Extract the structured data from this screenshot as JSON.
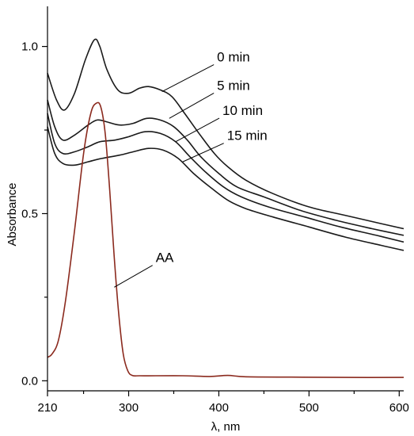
{
  "chart_data": {
    "type": "line",
    "title": "",
    "xlabel": "λ, nm",
    "ylabel": "Absorbance",
    "xlim": [
      210,
      605
    ],
    "ylim": [
      -0.03,
      1.12
    ],
    "x_ticks": [
      {
        "value": 210,
        "label": "210"
      },
      {
        "value": 300,
        "label": "300"
      },
      {
        "value": 400,
        "label": "400"
      },
      {
        "value": 500,
        "label": "500"
      },
      {
        "value": 600,
        "label": "600"
      }
    ],
    "x_minor_ticks": [
      250,
      350,
      450,
      550
    ],
    "y_ticks": [
      {
        "value": 0.0,
        "label": "0.0"
      },
      {
        "value": 0.5,
        "label": "0.5"
      },
      {
        "value": 1.0,
        "label": "1.0"
      }
    ],
    "y_minor_ticks": [
      0.25,
      0.75
    ],
    "grid": false,
    "series": [
      {
        "name": "0 min",
        "color": "#1a1a1a",
        "label_anchor": [
          337,
          0.865
        ],
        "points": [
          [
            210,
            0.92
          ],
          [
            220,
            0.84
          ],
          [
            229,
            0.81
          ],
          [
            240,
            0.86
          ],
          [
            252,
            0.96
          ],
          [
            262,
            1.02
          ],
          [
            268,
            1.0
          ],
          [
            276,
            0.93
          ],
          [
            288,
            0.87
          ],
          [
            300,
            0.86
          ],
          [
            312,
            0.875
          ],
          [
            322,
            0.88
          ],
          [
            335,
            0.87
          ],
          [
            348,
            0.85
          ],
          [
            362,
            0.8
          ],
          [
            378,
            0.74
          ],
          [
            395,
            0.68
          ],
          [
            410,
            0.64
          ],
          [
            430,
            0.6
          ],
          [
            460,
            0.56
          ],
          [
            500,
            0.52
          ],
          [
            540,
            0.495
          ],
          [
            580,
            0.47
          ],
          [
            605,
            0.455
          ]
        ]
      },
      {
        "name": "5 min",
        "color": "#1a1a1a",
        "label_anchor": [
          345,
          0.785
        ],
        "points": [
          [
            210,
            0.84
          ],
          [
            218,
            0.76
          ],
          [
            227,
            0.72
          ],
          [
            240,
            0.735
          ],
          [
            255,
            0.765
          ],
          [
            265,
            0.78
          ],
          [
            275,
            0.775
          ],
          [
            290,
            0.765
          ],
          [
            305,
            0.77
          ],
          [
            320,
            0.785
          ],
          [
            335,
            0.78
          ],
          [
            350,
            0.76
          ],
          [
            365,
            0.72
          ],
          [
            380,
            0.67
          ],
          [
            400,
            0.62
          ],
          [
            420,
            0.58
          ],
          [
            450,
            0.55
          ],
          [
            490,
            0.51
          ],
          [
            530,
            0.48
          ],
          [
            570,
            0.455
          ],
          [
            605,
            0.435
          ]
        ]
      },
      {
        "name": "10 min",
        "color": "#1a1a1a",
        "label_anchor": [
          352,
          0.715
        ],
        "points": [
          [
            210,
            0.8
          ],
          [
            218,
            0.71
          ],
          [
            227,
            0.68
          ],
          [
            240,
            0.685
          ],
          [
            255,
            0.7
          ],
          [
            268,
            0.715
          ],
          [
            285,
            0.72
          ],
          [
            300,
            0.73
          ],
          [
            318,
            0.745
          ],
          [
            335,
            0.74
          ],
          [
            352,
            0.715
          ],
          [
            368,
            0.67
          ],
          [
            385,
            0.625
          ],
          [
            405,
            0.58
          ],
          [
            425,
            0.55
          ],
          [
            455,
            0.52
          ],
          [
            495,
            0.49
          ],
          [
            535,
            0.46
          ],
          [
            575,
            0.435
          ],
          [
            605,
            0.415
          ]
        ]
      },
      {
        "name": "15 min",
        "color": "#1a1a1a",
        "label_anchor": [
          360,
          0.655
        ],
        "points": [
          [
            210,
            0.76
          ],
          [
            218,
            0.68
          ],
          [
            227,
            0.65
          ],
          [
            240,
            0.645
          ],
          [
            255,
            0.655
          ],
          [
            270,
            0.665
          ],
          [
            290,
            0.675
          ],
          [
            305,
            0.685
          ],
          [
            322,
            0.695
          ],
          [
            338,
            0.69
          ],
          [
            355,
            0.665
          ],
          [
            372,
            0.62
          ],
          [
            390,
            0.58
          ],
          [
            410,
            0.54
          ],
          [
            430,
            0.515
          ],
          [
            460,
            0.49
          ],
          [
            500,
            0.46
          ],
          [
            540,
            0.43
          ],
          [
            580,
            0.405
          ],
          [
            605,
            0.39
          ]
        ]
      },
      {
        "name": "AA",
        "color": "#8b2a1e",
        "label_anchor": [
          284,
          0.28
        ],
        "points": [
          [
            210,
            0.07
          ],
          [
            215,
            0.08
          ],
          [
            222,
            0.12
          ],
          [
            230,
            0.24
          ],
          [
            240,
            0.45
          ],
          [
            250,
            0.68
          ],
          [
            258,
            0.8
          ],
          [
            264,
            0.83
          ],
          [
            269,
            0.82
          ],
          [
            274,
            0.74
          ],
          [
            279,
            0.57
          ],
          [
            284,
            0.37
          ],
          [
            289,
            0.2
          ],
          [
            294,
            0.08
          ],
          [
            299,
            0.03
          ],
          [
            304,
            0.016
          ],
          [
            312,
            0.015
          ],
          [
            330,
            0.015
          ],
          [
            360,
            0.015
          ],
          [
            390,
            0.013
          ],
          [
            410,
            0.016
          ],
          [
            430,
            0.012
          ],
          [
            480,
            0.011
          ],
          [
            540,
            0.01
          ],
          [
            605,
            0.01
          ]
        ]
      }
    ],
    "annotations": [
      {
        "series": "0 min",
        "text": "0 min",
        "text_at": [
          398,
          0.955
        ]
      },
      {
        "series": "5 min",
        "text": "5 min",
        "text_at": [
          398,
          0.87
        ]
      },
      {
        "series": "10 min",
        "text": "10 min",
        "text_at": [
          404,
          0.795
        ]
      },
      {
        "series": "15 min",
        "text": "15 min",
        "text_at": [
          409,
          0.72
        ]
      },
      {
        "series": "AA",
        "text": "AA",
        "text_at": [
          330,
          0.355
        ]
      }
    ]
  }
}
